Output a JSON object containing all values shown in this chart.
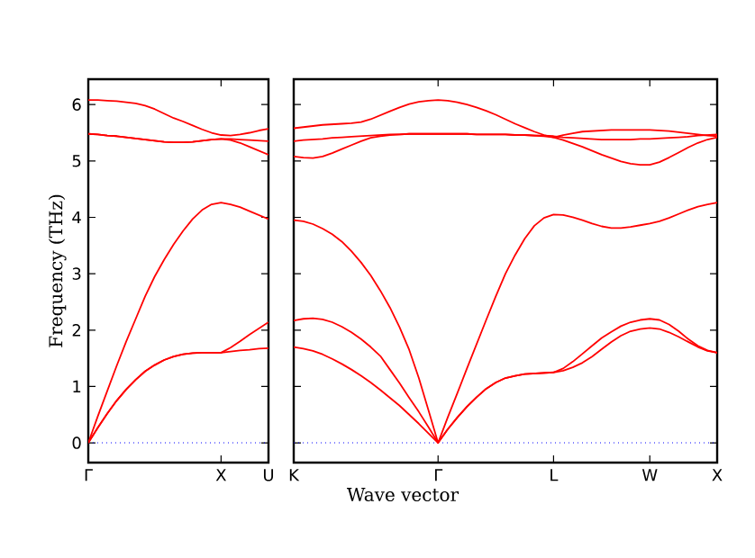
{
  "chart_data": [
    {
      "type": "line",
      "ylabel": "Frequency (THz)",
      "ylim": [
        -0.35,
        6.45
      ],
      "categories": [
        "Γ",
        null,
        null,
        null,
        null,
        null,
        null,
        null,
        null,
        null,
        null,
        null,
        null,
        null,
        "X",
        null,
        null,
        null,
        null,
        "U"
      ],
      "yticks": [
        0,
        1,
        2,
        3,
        4,
        5,
        6
      ],
      "ref_lines": [
        {
          "axis": "y",
          "value": 0,
          "color": "#0000ff",
          "line_style": "dotted"
        }
      ],
      "series": [
        {
          "color": "#ff0000",
          "values": [
            0,
            0.27,
            0.52,
            0.75,
            0.95,
            1.12,
            1.27,
            1.38,
            1.47,
            1.53,
            1.57,
            1.59,
            1.6,
            1.6,
            1.6,
            1.62,
            1.64,
            1.65,
            1.67,
            1.68
          ]
        },
        {
          "color": "#ff0000",
          "values": [
            0,
            0.27,
            0.52,
            0.75,
            0.95,
            1.12,
            1.27,
            1.38,
            1.47,
            1.53,
            1.57,
            1.59,
            1.6,
            1.6,
            1.6,
            1.69,
            1.8,
            1.92,
            2.03,
            2.14
          ]
        },
        {
          "color": "#ff0000",
          "values": [
            0,
            0.47,
            0.92,
            1.37,
            1.8,
            2.2,
            2.6,
            2.95,
            3.25,
            3.52,
            3.76,
            3.97,
            4.13,
            4.23,
            4.26,
            4.23,
            4.18,
            4.11,
            4.04,
            3.97
          ]
        },
        {
          "color": "#ff0000",
          "values": [
            6.08,
            6.08,
            6.07,
            6.06,
            6.04,
            6.02,
            5.98,
            5.92,
            5.84,
            5.76,
            5.7,
            5.63,
            5.56,
            5.5,
            5.46,
            5.45,
            5.47,
            5.5,
            5.54,
            5.57
          ]
        },
        {
          "color": "#ff0000",
          "values": [
            5.48,
            5.47,
            5.45,
            5.44,
            5.42,
            5.4,
            5.38,
            5.36,
            5.34,
            5.33,
            5.33,
            5.34,
            5.36,
            5.38,
            5.39,
            5.39,
            5.38,
            5.37,
            5.36,
            5.35
          ]
        },
        {
          "color": "#ff0000",
          "values": [
            5.48,
            5.47,
            5.45,
            5.44,
            5.42,
            5.4,
            5.38,
            5.36,
            5.34,
            5.33,
            5.33,
            5.34,
            5.36,
            5.38,
            5.39,
            5.37,
            5.32,
            5.25,
            5.18,
            5.11
          ]
        }
      ]
    },
    {
      "type": "line",
      "xlabel": "Wave vector",
      "ylim": [
        -0.35,
        6.45
      ],
      "tick_labels": "x",
      "categories": [
        "K",
        null,
        null,
        null,
        null,
        null,
        null,
        null,
        null,
        null,
        null,
        null,
        null,
        null,
        null,
        "Γ",
        null,
        null,
        null,
        null,
        null,
        null,
        null,
        null,
        null,
        null,
        null,
        "L",
        null,
        null,
        null,
        null,
        null,
        null,
        null,
        null,
        null,
        "W",
        null,
        null,
        null,
        null,
        null,
        null,
        "X"
      ],
      "yticks": [
        0,
        1,
        2,
        3,
        4,
        5,
        6
      ],
      "ref_lines": [
        {
          "axis": "y",
          "value": 0,
          "color": "#0000ff",
          "line_style": "dotted"
        }
      ],
      "series": [
        {
          "color": "#ff0000",
          "values": [
            1.7,
            1.67,
            1.63,
            1.57,
            1.49,
            1.4,
            1.3,
            1.19,
            1.07,
            0.94,
            0.8,
            0.66,
            0.5,
            0.34,
            0.17,
            0,
            0.24,
            0.45,
            0.64,
            0.81,
            0.96,
            1.07,
            1.15,
            1.19,
            1.22,
            1.23,
            1.24,
            1.25,
            1.28,
            1.34,
            1.42,
            1.53,
            1.66,
            1.79,
            1.9,
            1.98,
            2.02,
            2.04,
            2.02,
            1.96,
            1.88,
            1.79,
            1.7,
            1.63,
            1.6
          ]
        },
        {
          "color": "#ff0000",
          "values": [
            2.17,
            2.2,
            2.21,
            2.19,
            2.14,
            2.06,
            1.96,
            1.84,
            1.7,
            1.54,
            1.3,
            1.06,
            0.8,
            0.55,
            0.28,
            0,
            0.24,
            0.45,
            0.64,
            0.81,
            0.96,
            1.07,
            1.15,
            1.19,
            1.22,
            1.23,
            1.24,
            1.25,
            1.32,
            1.44,
            1.58,
            1.72,
            1.86,
            1.97,
            2.07,
            2.14,
            2.18,
            2.2,
            2.18,
            2.1,
            1.98,
            1.84,
            1.72,
            1.64,
            1.6
          ]
        },
        {
          "color": "#ff0000",
          "values": [
            3.95,
            3.93,
            3.88,
            3.8,
            3.7,
            3.57,
            3.4,
            3.2,
            2.97,
            2.7,
            2.4,
            2.05,
            1.65,
            1.15,
            0.58,
            0,
            0.45,
            0.88,
            1.32,
            1.75,
            2.18,
            2.6,
            3.0,
            3.33,
            3.62,
            3.85,
            3.99,
            4.05,
            4.04,
            4.0,
            3.95,
            3.89,
            3.84,
            3.81,
            3.81,
            3.83,
            3.86,
            3.89,
            3.93,
            3.99,
            4.06,
            4.13,
            4.19,
            4.23,
            4.26
          ]
        },
        {
          "color": "#ff0000",
          "values": [
            5.58,
            5.6,
            5.62,
            5.64,
            5.65,
            5.66,
            5.67,
            5.69,
            5.74,
            5.81,
            5.88,
            5.95,
            6.01,
            6.05,
            6.07,
            6.08,
            6.07,
            6.04,
            6.0,
            5.95,
            5.89,
            5.82,
            5.74,
            5.66,
            5.59,
            5.52,
            5.46,
            5.42,
            5.46,
            5.49,
            5.52,
            5.53,
            5.54,
            5.55,
            5.55,
            5.55,
            5.55,
            5.55,
            5.54,
            5.53,
            5.51,
            5.49,
            5.47,
            5.45,
            5.44
          ]
        },
        {
          "color": "#ff0000",
          "values": [
            5.35,
            5.37,
            5.38,
            5.39,
            5.41,
            5.42,
            5.43,
            5.44,
            5.45,
            5.46,
            5.47,
            5.47,
            5.48,
            5.48,
            5.48,
            5.48,
            5.48,
            5.48,
            5.48,
            5.47,
            5.47,
            5.47,
            5.47,
            5.46,
            5.46,
            5.45,
            5.45,
            5.44,
            5.42,
            5.41,
            5.4,
            5.39,
            5.38,
            5.38,
            5.38,
            5.38,
            5.39,
            5.39,
            5.4,
            5.41,
            5.42,
            5.43,
            5.45,
            5.46,
            5.47
          ]
        },
        {
          "color": "#ff0000",
          "values": [
            5.08,
            5.06,
            5.05,
            5.08,
            5.14,
            5.21,
            5.28,
            5.35,
            5.41,
            5.44,
            5.46,
            5.47,
            5.48,
            5.48,
            5.48,
            5.48,
            5.48,
            5.48,
            5.48,
            5.47,
            5.47,
            5.47,
            5.47,
            5.46,
            5.46,
            5.45,
            5.44,
            5.42,
            5.37,
            5.31,
            5.25,
            5.18,
            5.11,
            5.05,
            4.99,
            4.95,
            4.93,
            4.93,
            4.98,
            5.06,
            5.15,
            5.24,
            5.32,
            5.38,
            5.42
          ]
        }
      ]
    }
  ]
}
